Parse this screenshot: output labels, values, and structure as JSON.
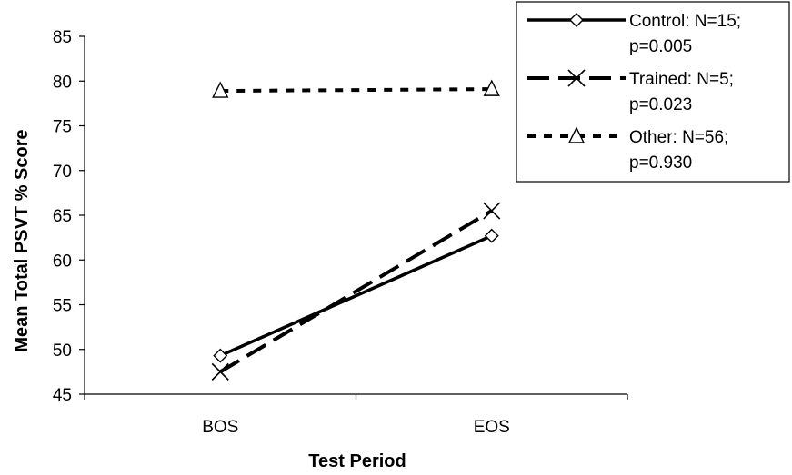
{
  "chart_data": {
    "type": "line",
    "title": "",
    "xlabel": "Test Period",
    "ylabel": "Mean Total PSVT % Score",
    "categories": [
      "BOS",
      "EOS"
    ],
    "ylim": [
      45,
      85
    ],
    "yticks": [
      "45",
      "50",
      "55",
      "60",
      "65",
      "70",
      "75",
      "80",
      "85"
    ],
    "grid": false,
    "legend_position": "top-right",
    "series": [
      {
        "name": "Control: N=15; p=0.005",
        "name_lines": [
          "Control: N=15;",
          "p=0.005"
        ],
        "values": [
          49.3,
          62.7
        ],
        "marker": "diamond",
        "line_style": "solid",
        "color": "#000000"
      },
      {
        "name": "Trained: N=5; p=0.023",
        "name_lines": [
          "Trained: N=5;",
          "p=0.023"
        ],
        "values": [
          47.5,
          65.5
        ],
        "marker": "x",
        "line_style": "dashed",
        "color": "#000000"
      },
      {
        "name": "Other: N=56; p=0.930",
        "name_lines": [
          "Other: N=56;",
          "p=0.930"
        ],
        "values": [
          78.9,
          79.1
        ],
        "marker": "triangle",
        "line_style": "dotted",
        "color": "#000000"
      }
    ]
  }
}
